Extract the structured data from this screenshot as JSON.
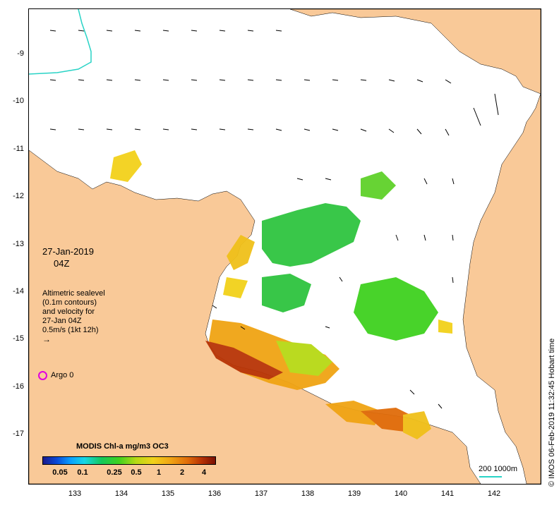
{
  "map": {
    "date_line": "27-Jan-2019",
    "time_line": "04Z",
    "legend_lines": [
      "Altimetric sealevel",
      "(0.1m contours)",
      "and velocity for",
      "27-Jan 04Z",
      "0.5m/s (1kt 12h)"
    ],
    "argo_label": "Argo 0",
    "colorbar": {
      "title": "MODIS Chl-a mg/m3 OC3",
      "ticks": [
        "0.05",
        "0.1",
        "0.25",
        "0.5",
        "1",
        "2",
        "4"
      ]
    },
    "scalebar_label": "200 1000m",
    "timestamp": "© IMOS 06-Feb-2019 11:32:45 Hobart time",
    "axes": {
      "lat_ticks": [
        "-9",
        "-10",
        "-11",
        "-12",
        "-13",
        "-14",
        "-15",
        "-16",
        "-17"
      ],
      "lon_ticks": [
        "133",
        "134",
        "135",
        "136",
        "137",
        "138",
        "139",
        "140",
        "141",
        "142"
      ]
    },
    "colors": {
      "land": "#f9c998",
      "ocean": "#ffffff",
      "isobath": "#29d3c6",
      "argo": "#e000e0"
    }
  }
}
